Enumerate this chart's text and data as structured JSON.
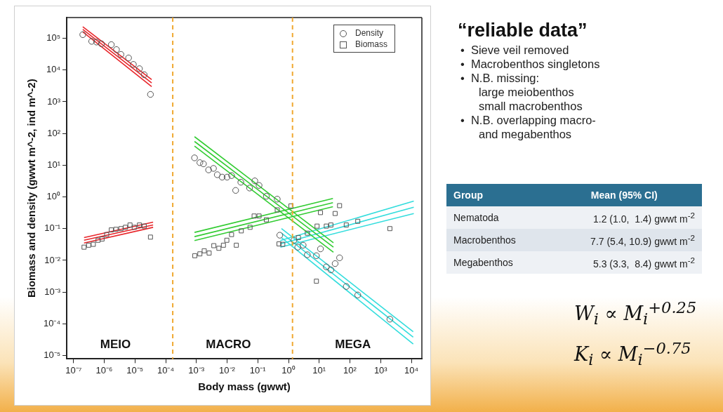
{
  "chart_data": [
    {
      "type": "scatter",
      "xlabel": "Body mass (gwwt)",
      "ylabel": "Biomass and density (gwwt m^-2, ind m^-2)",
      "log": "xy",
      "grid": false,
      "legend": "top right",
      "xlim": [
        6.4e-08,
        22000.0
      ],
      "ylim": [
        7.8e-06,
        450000.0
      ],
      "xticks": [
        {
          "value": 1e-07,
          "label": "10⁻⁷"
        },
        {
          "value": 1e-06,
          "label": "10⁻⁶"
        },
        {
          "value": 1e-05,
          "label": "10⁻⁵"
        },
        {
          "value": 0.0001,
          "label": "10⁻⁴"
        },
        {
          "value": 0.001,
          "label": "10⁻³"
        },
        {
          "value": 0.01,
          "label": "10⁻²"
        },
        {
          "value": 0.1,
          "label": "10⁻¹"
        },
        {
          "value": 1,
          "label": "10⁰"
        },
        {
          "value": 10,
          "label": "10¹"
        },
        {
          "value": 100,
          "label": "10²"
        },
        {
          "value": 1000,
          "label": "10³"
        },
        {
          "value": 10000,
          "label": "10⁴"
        }
      ],
      "yticks": [
        {
          "value": 1e-05,
          "label": "10⁻⁵"
        },
        {
          "value": 0.0001,
          "label": "10⁻⁴"
        },
        {
          "value": 0.001,
          "label": "10⁻³"
        },
        {
          "value": 0.01,
          "label": "10⁻²"
        },
        {
          "value": 0.1,
          "label": "10⁻¹"
        },
        {
          "value": 1,
          "label": "10⁰"
        },
        {
          "value": 10,
          "label": "10¹"
        },
        {
          "value": 100,
          "label": "10²"
        },
        {
          "value": 1000,
          "label": "10³"
        },
        {
          "value": 10000,
          "label": "10⁴"
        },
        {
          "value": 100000,
          "label": "10⁵"
        }
      ],
      "ref_lines": [
        {
          "axis": "x",
          "value": 0.00017,
          "color": "#f0a830",
          "line_style": "dashed"
        },
        {
          "axis": "x",
          "value": 1.35,
          "color": "#f0a830",
          "line_style": "dashed"
        }
      ],
      "annotations": [
        "MEIO",
        "MACRO",
        "MEGA"
      ],
      "series": [
        {
          "name": "Density",
          "type": "scatter",
          "marker": "circle",
          "color": "#555555",
          "x": [
            2e-07,
            3.9e-07,
            5.6e-07,
            8.1e-07,
            1.7e-06,
            2.5e-06,
            3.5e-06,
            6.2e-06,
            8.9e-06,
            1.4e-05,
            2e-05,
            3.2e-05,
            0.00087,
            0.0013,
            0.0017,
            0.0025,
            0.0036,
            0.0048,
            0.0069,
            0.01,
            0.014,
            0.019,
            0.028,
            0.054,
            0.08,
            0.11,
            0.19,
            0.43,
            0.52,
            1.5,
            2.0,
            3.0,
            4.1,
            8.1,
            11,
            17,
            24,
            33,
            46,
            76,
            180,
            2000
          ],
          "values": [
            130000.0,
            80000.0,
            76000.0,
            67000.0,
            63000.0,
            44000.0,
            31000.0,
            24000.0,
            15000.0,
            11000.0,
            7100.0,
            1700.0,
            17,
            12,
            11,
            7.1,
            7.9,
            5.0,
            4.2,
            4.2,
            4.7,
            1.6,
            2.9,
            1.9,
            3.2,
            2.3,
            1.05,
            0.85,
            0.062,
            0.043,
            0.026,
            0.03,
            0.015,
            0.014,
            0.023,
            0.0062,
            0.005,
            0.0079,
            0.012,
            0.0015,
            0.00081,
            0.00014
          ]
        },
        {
          "name": "Biomass",
          "type": "scatter",
          "marker": "square",
          "color": "#555555",
          "x": [
            2.2e-07,
            3.1e-07,
            4.4e-07,
            6.3e-07,
            8.5e-07,
            1.2e-06,
            1.7e-06,
            2.4e-06,
            3.5e-06,
            4.9e-06,
            6.9e-06,
            9.5e-06,
            1.4e-05,
            2e-05,
            3.2e-05,
            0.00089,
            0.0013,
            0.0018,
            0.0026,
            0.0037,
            0.0054,
            0.0076,
            0.0098,
            0.014,
            0.02,
            0.029,
            0.056,
            0.076,
            0.11,
            0.19,
            0.43,
            1.2,
            0.49,
            0.65,
            2.1,
            4.1,
            8.1,
            8.5,
            11,
            17,
            24,
            33,
            46,
            76,
            180,
            2000
          ],
          "values": [
            0.026,
            0.03,
            0.032,
            0.043,
            0.047,
            0.065,
            0.091,
            0.095,
            0.1,
            0.11,
            0.13,
            0.11,
            0.13,
            0.12,
            0.054,
            0.014,
            0.016,
            0.02,
            0.017,
            0.029,
            0.024,
            0.03,
            0.043,
            0.065,
            0.03,
            0.085,
            0.11,
            0.25,
            0.25,
            0.19,
            0.39,
            0.52,
            0.033,
            0.032,
            0.052,
            0.072,
            0.0022,
            0.12,
            0.32,
            0.12,
            0.13,
            0.3,
            0.53,
            0.13,
            0.17,
            0.1
          ]
        },
        {
          "type": "line",
          "marker": "none",
          "color": "#e8262b",
          "x": [
            2e-07,
            3.5e-05
          ],
          "values": [
            230000.0,
            5000.0
          ]
        },
        {
          "type": "line",
          "marker": "none",
          "color": "#e8262b",
          "x": [
            2e-07,
            3.5e-05
          ],
          "values": [
            190000.0,
            3900.0
          ]
        },
        {
          "type": "line",
          "marker": "none",
          "color": "#e8262b",
          "x": [
            2e-07,
            3.5e-05
          ],
          "values": [
            160000.0,
            3000.0
          ]
        },
        {
          "type": "line",
          "marker": "none",
          "color": "#e8262b",
          "x": [
            2.2e-07,
            3.9e-05
          ],
          "values": [
            0.052,
            0.16
          ]
        },
        {
          "type": "line",
          "marker": "none",
          "color": "#e8262b",
          "x": [
            2.2e-07,
            3.9e-05
          ],
          "values": [
            0.043,
            0.13
          ]
        },
        {
          "type": "line",
          "marker": "none",
          "color": "#e8262b",
          "x": [
            2.2e-07,
            3.9e-05
          ],
          "values": [
            0.035,
            0.11
          ]
        },
        {
          "type": "line",
          "marker": "none",
          "color": "#33cc33",
          "x": [
            0.00087,
            29
          ],
          "values": [
            79,
            0.036
          ]
        },
        {
          "type": "line",
          "marker": "none",
          "color": "#33cc33",
          "x": [
            0.00087,
            29
          ],
          "values": [
            56,
            0.026
          ]
        },
        {
          "type": "line",
          "marker": "none",
          "color": "#33cc33",
          "x": [
            0.00087,
            29
          ],
          "values": [
            40,
            0.018
          ]
        },
        {
          "type": "line",
          "marker": "none",
          "color": "#33cc33",
          "x": [
            0.00087,
            28
          ],
          "values": [
            0.076,
            0.89
          ]
        },
        {
          "type": "line",
          "marker": "none",
          "color": "#33cc33",
          "x": [
            0.00087,
            28
          ],
          "values": [
            0.056,
            0.66
          ]
        },
        {
          "type": "line",
          "marker": "none",
          "color": "#33cc33",
          "x": [
            0.00087,
            28
          ],
          "values": [
            0.042,
            0.49
          ]
        },
        {
          "type": "line",
          "marker": "none",
          "color": "#33dddd",
          "x": [
            0.59,
            11500
          ],
          "values": [
            0.1,
            5.6e-05
          ]
        },
        {
          "type": "line",
          "marker": "none",
          "color": "#33dddd",
          "x": [
            0.59,
            11500
          ],
          "values": [
            0.072,
            3.8e-05
          ]
        },
        {
          "type": "line",
          "marker": "none",
          "color": "#33dddd",
          "x": [
            0.59,
            11500
          ],
          "values": [
            0.052,
            2.3e-05
          ]
        },
        {
          "type": "line",
          "marker": "none",
          "color": "#33dddd",
          "x": [
            0.54,
            12000
          ],
          "values": [
            0.042,
            0.74
          ]
        },
        {
          "type": "line",
          "marker": "none",
          "color": "#33dddd",
          "x": [
            0.54,
            12000
          ],
          "values": [
            0.033,
            0.47
          ]
        },
        {
          "type": "line",
          "marker": "none",
          "color": "#33dddd",
          "x": [
            0.54,
            12000
          ],
          "values": [
            0.026,
            0.3
          ]
        }
      ]
    },
    {
      "type": "other",
      "title": "“reliable data”",
      "annotations": [
        "•  Sieve veil removed",
        "•  Macrobenthos singletons",
        "•  N.B. missing:\nlarge meiobenthos\nsmall macrobenthos",
        "•  N.B. overlapping macro-\nand megabenthos"
      ]
    },
    {
      "type": "other",
      "xlabel": "Group",
      "ylabel": "Mean (95% CI)",
      "categories": [
        "Nematoda",
        "Macrobenthos",
        "Megabenthos"
      ],
      "value_labels": [
        "1.2 (1.0,  1.4) gwwt m$^{-2}$",
        "7.7 (5.4, 10.9) gwwt m$^{-2}$",
        "5.3 (3.3,  8.4) gwwt m$^{-2}$"
      ],
      "annotations": [
        "W$_{i}$ ∝ M$_{i}$$^{+0.25}$",
        "K$_{i}$ ∝ M$_{i}$$^{−0.75}$"
      ]
    }
  ]
}
